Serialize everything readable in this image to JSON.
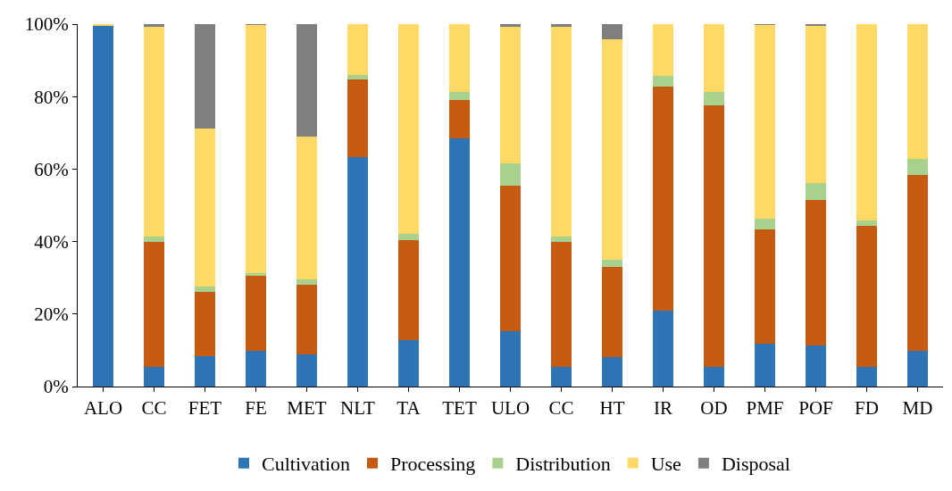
{
  "chart_data": {
    "type": "bar",
    "stacked": true,
    "categories": [
      "ALO",
      "CC",
      "FET",
      "FE",
      "MET",
      "NLT",
      "TA",
      "TET",
      "ULO",
      "CC",
      "HT",
      "IR",
      "OD",
      "PMF",
      "POF",
      "FD",
      "MD"
    ],
    "series": [
      {
        "name": "Cultivation",
        "color": "#2e75b6",
        "values": [
          99.5,
          5.3,
          8.4,
          9.9,
          8.9,
          63.4,
          12.8,
          68.4,
          15.2,
          5.3,
          8.2,
          21.0,
          5.3,
          11.8,
          11.3,
          5.3,
          9.9
        ]
      },
      {
        "name": "Processing",
        "color": "#c55a11",
        "values": [
          0,
          34.7,
          17.6,
          20.7,
          19.3,
          21.4,
          27.7,
          10.6,
          40.2,
          34.7,
          24.8,
          61.7,
          72.3,
          31.6,
          40.3,
          39.0,
          48.4
        ]
      },
      {
        "name": "Distribution",
        "color": "#a9d18e",
        "values": [
          0,
          1.4,
          1.5,
          0.7,
          1.4,
          1.2,
          1.7,
          2.4,
          6.3,
          1.4,
          1.9,
          3.1,
          3.6,
          2.9,
          4.5,
          1.5,
          4.6
        ]
      },
      {
        "name": "Use",
        "color": "#ffd966",
        "values": [
          0.5,
          57.9,
          43.6,
          68.5,
          39.3,
          14.0,
          57.8,
          18.6,
          37.6,
          57.9,
          61.0,
          14.2,
          18.8,
          53.5,
          43.4,
          54.2,
          37.1
        ]
      },
      {
        "name": "Disposal",
        "color": "#7f7f7f",
        "values": [
          0,
          0.7,
          28.9,
          0.2,
          31.1,
          0,
          0,
          0,
          0.7,
          0.7,
          4.1,
          0,
          0,
          0.2,
          0.5,
          0,
          0
        ]
      }
    ],
    "ylim": [
      0,
      100
    ],
    "yticks": [
      {
        "value": 0,
        "label": "0%"
      },
      {
        "value": 20,
        "label": "20%"
      },
      {
        "value": 40,
        "label": "40%"
      },
      {
        "value": 60,
        "label": "60%"
      },
      {
        "value": 80,
        "label": "80%"
      },
      {
        "value": 100,
        "label": "100%"
      }
    ],
    "grid": false,
    "legend": "bottom"
  }
}
